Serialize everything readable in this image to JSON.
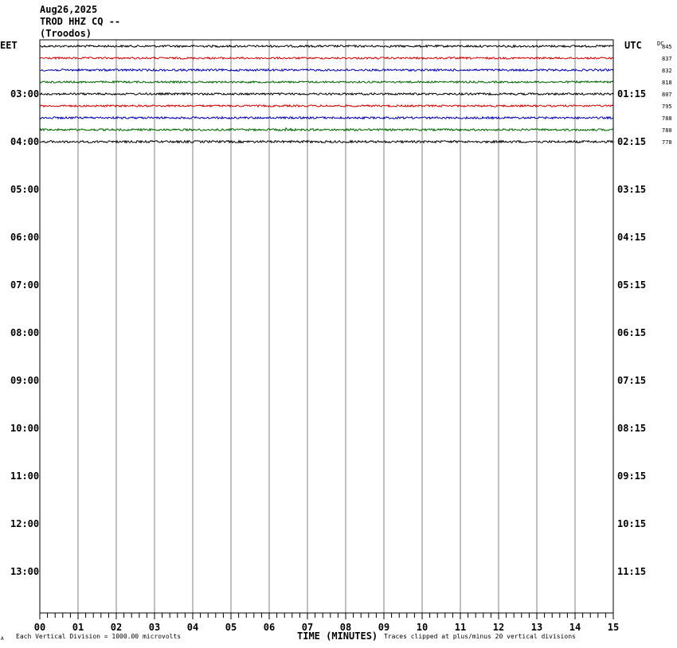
{
  "header": {
    "date": "Aug26,2025",
    "station": "TROD HHZ CQ --",
    "location": "(Troodos)"
  },
  "left_zone": "EET",
  "right_zone": "UTC",
  "dc_label": "DC",
  "footer": {
    "corner_mark": "A",
    "scale": "Each Vertical Division = 1000.00 microvolts",
    "xlabel": "TIME (MINUTES)",
    "clip_note": "Traces clipped at plus/minus 20 vertical divisions"
  },
  "colors": {
    "trace_cycle": [
      "#000000",
      "#cc0000",
      "#0000aa",
      "#006600"
    ],
    "grid": "#808080",
    "frame": "#000000"
  },
  "chart_data": {
    "type": "line",
    "title": "",
    "xlabel": "TIME (MINUTES)",
    "ylabel": "",
    "xlim": [
      0,
      15
    ],
    "x_ticks": [
      "00",
      "01",
      "02",
      "03",
      "04",
      "05",
      "06",
      "07",
      "08",
      "09",
      "10",
      "11",
      "12",
      "13",
      "14",
      "15"
    ],
    "rows_total": 48,
    "rows_per_hour": 4,
    "first_row_offset_rows": 0,
    "left_hour_labels": [
      {
        "label": "03:00",
        "row": 4
      },
      {
        "label": "04:00",
        "row": 8
      },
      {
        "label": "05:00",
        "row": 12
      },
      {
        "label": "06:00",
        "row": 16
      },
      {
        "label": "07:00",
        "row": 20
      },
      {
        "label": "08:00",
        "row": 24
      },
      {
        "label": "09:00",
        "row": 28
      },
      {
        "label": "10:00",
        "row": 32
      },
      {
        "label": "11:00",
        "row": 36
      },
      {
        "label": "12:00",
        "row": 40
      },
      {
        "label": "13:00",
        "row": 44
      }
    ],
    "right_hour_labels": [
      {
        "label": "01:15",
        "row": 4
      },
      {
        "label": "02:15",
        "row": 8
      },
      {
        "label": "03:15",
        "row": 12
      },
      {
        "label": "04:15",
        "row": 16
      },
      {
        "label": "05:15",
        "row": 20
      },
      {
        "label": "06:15",
        "row": 24
      },
      {
        "label": "07:15",
        "row": 28
      },
      {
        "label": "08:15",
        "row": 32
      },
      {
        "label": "09:15",
        "row": 36
      },
      {
        "label": "10:15",
        "row": 40
      },
      {
        "label": "11:15",
        "row": 44
      }
    ],
    "series": [
      {
        "row": 0,
        "dc": "845",
        "noise": 1.0,
        "event_minute": null
      },
      {
        "row": 1,
        "dc": "837",
        "noise": 0.9,
        "event_minute": null
      },
      {
        "row": 2,
        "dc": "832",
        "noise": 1.0,
        "event_minute": null
      },
      {
        "row": 3,
        "dc": "818",
        "noise": 0.9,
        "event_minute": null
      },
      {
        "row": 4,
        "dc": "807",
        "noise": 1.0,
        "event_minute": null
      },
      {
        "row": 5,
        "dc": "795",
        "noise": 0.9,
        "event_minute": null
      },
      {
        "row": 6,
        "dc": "788",
        "noise": 1.0,
        "event_minute": null
      },
      {
        "row": 7,
        "dc": "780",
        "noise": 1.0,
        "event_minute": 6.5
      },
      {
        "row": 8,
        "dc": "778",
        "noise": 1.1,
        "event_minute": null
      }
    ]
  }
}
